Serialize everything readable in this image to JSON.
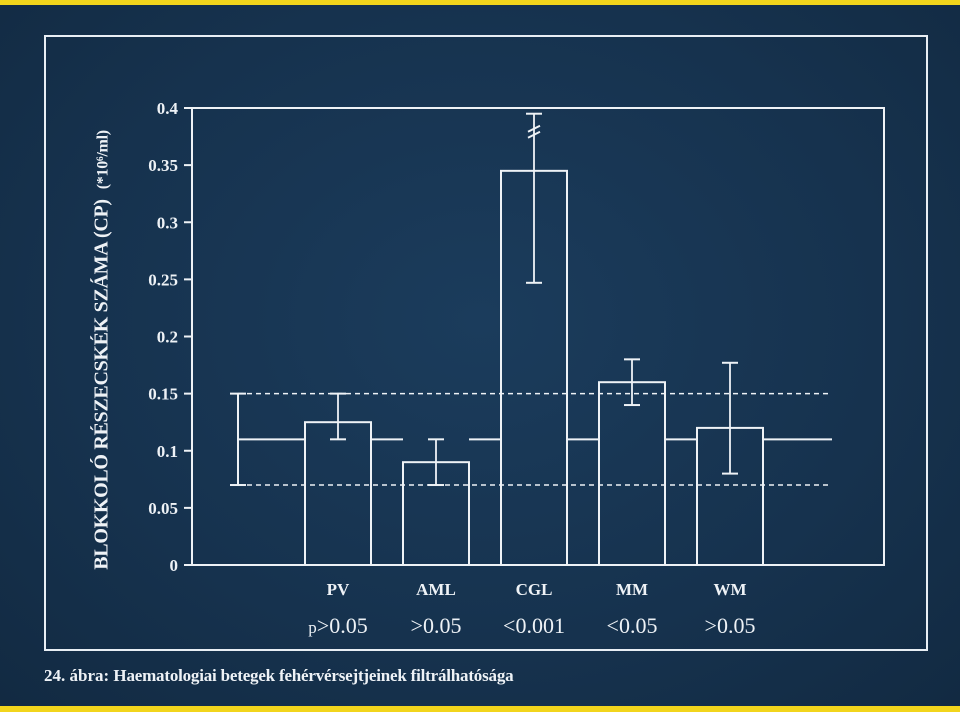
{
  "ylabel": {
    "text": "BLOKKOLÓ RÉSZECSKÉK SZÁMA (CP)",
    "unit": "(*10⁶/ml)"
  },
  "caption": {
    "number": "24.",
    "label": "ábra:",
    "text": "Haematologiai betegek fehérvérsejtjeinek filtrálhatósága"
  },
  "chart_data": {
    "type": "bar",
    "categories": [
      "PV",
      "AML",
      "CGL",
      "MM",
      "WM"
    ],
    "values": [
      0.125,
      0.09,
      0.345,
      0.16,
      0.12
    ],
    "error_low": [
      0.11,
      0.07,
      0.247,
      0.14,
      0.08
    ],
    "error_high": [
      0.15,
      0.11,
      0.395,
      0.18,
      0.177
    ],
    "broken_error": [
      false,
      false,
      true,
      false,
      false
    ],
    "p_values": [
      "p>0.05",
      ">0.05",
      "<0.001",
      "<0.05",
      ">0.05"
    ],
    "reference": {
      "mean": 0.11,
      "range_low": 0.07,
      "range_high": 0.15
    },
    "ylim": [
      0,
      0.4
    ],
    "yticks": [
      0,
      0.05,
      0.1,
      0.15,
      0.2,
      0.25,
      0.3,
      0.35,
      0.4
    ],
    "ytick_labels": [
      "0",
      "0.05",
      "0.1",
      "0.15",
      "0.2",
      "0.25",
      "0.3",
      "0.35",
      "0.4"
    ],
    "colors": {
      "background": "#16324e",
      "ink": "#eef2f6",
      "border": "#f2d51c"
    }
  }
}
